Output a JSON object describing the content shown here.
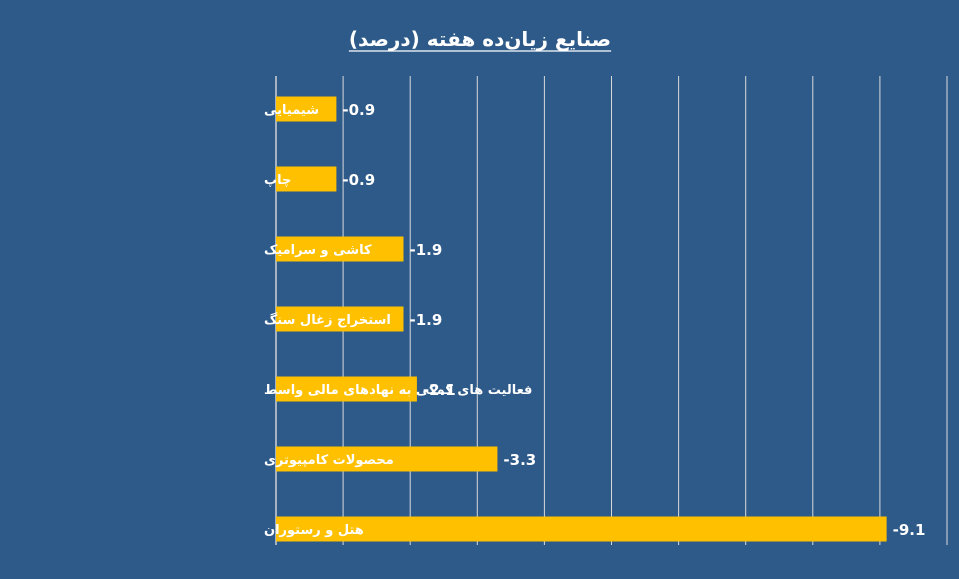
{
  "chart_data": {
    "type": "bar",
    "orientation": "horizontal",
    "title": "صنایع زیان‌ده هفته (درصد)",
    "xlabel": "",
    "ylabel": "",
    "categories": [
      "شیمیایی",
      "چاپ",
      "کاشی و سرامیک",
      "استخراج زغال سنگ",
      "فعالیت های کمکی به نهادهای مالی واسط",
      "محصولات کامپیوتری",
      "هتل و رستوران"
    ],
    "values": [
      -0.9,
      -0.9,
      -1.9,
      -1.9,
      -2.1,
      -3.3,
      -9.1
    ],
    "value_labels": [
      "-0.9",
      "-0.9",
      "-1.9",
      "-1.9",
      "-2.1",
      "-3.3",
      "-9.1"
    ],
    "xlim": [
      0,
      -10
    ],
    "grid": true,
    "legend": "none"
  },
  "colors": {
    "background": "#2E5A8A",
    "bar": "#FFC000",
    "text": "#FFFFFF",
    "gridline": "#D9D9D9"
  }
}
